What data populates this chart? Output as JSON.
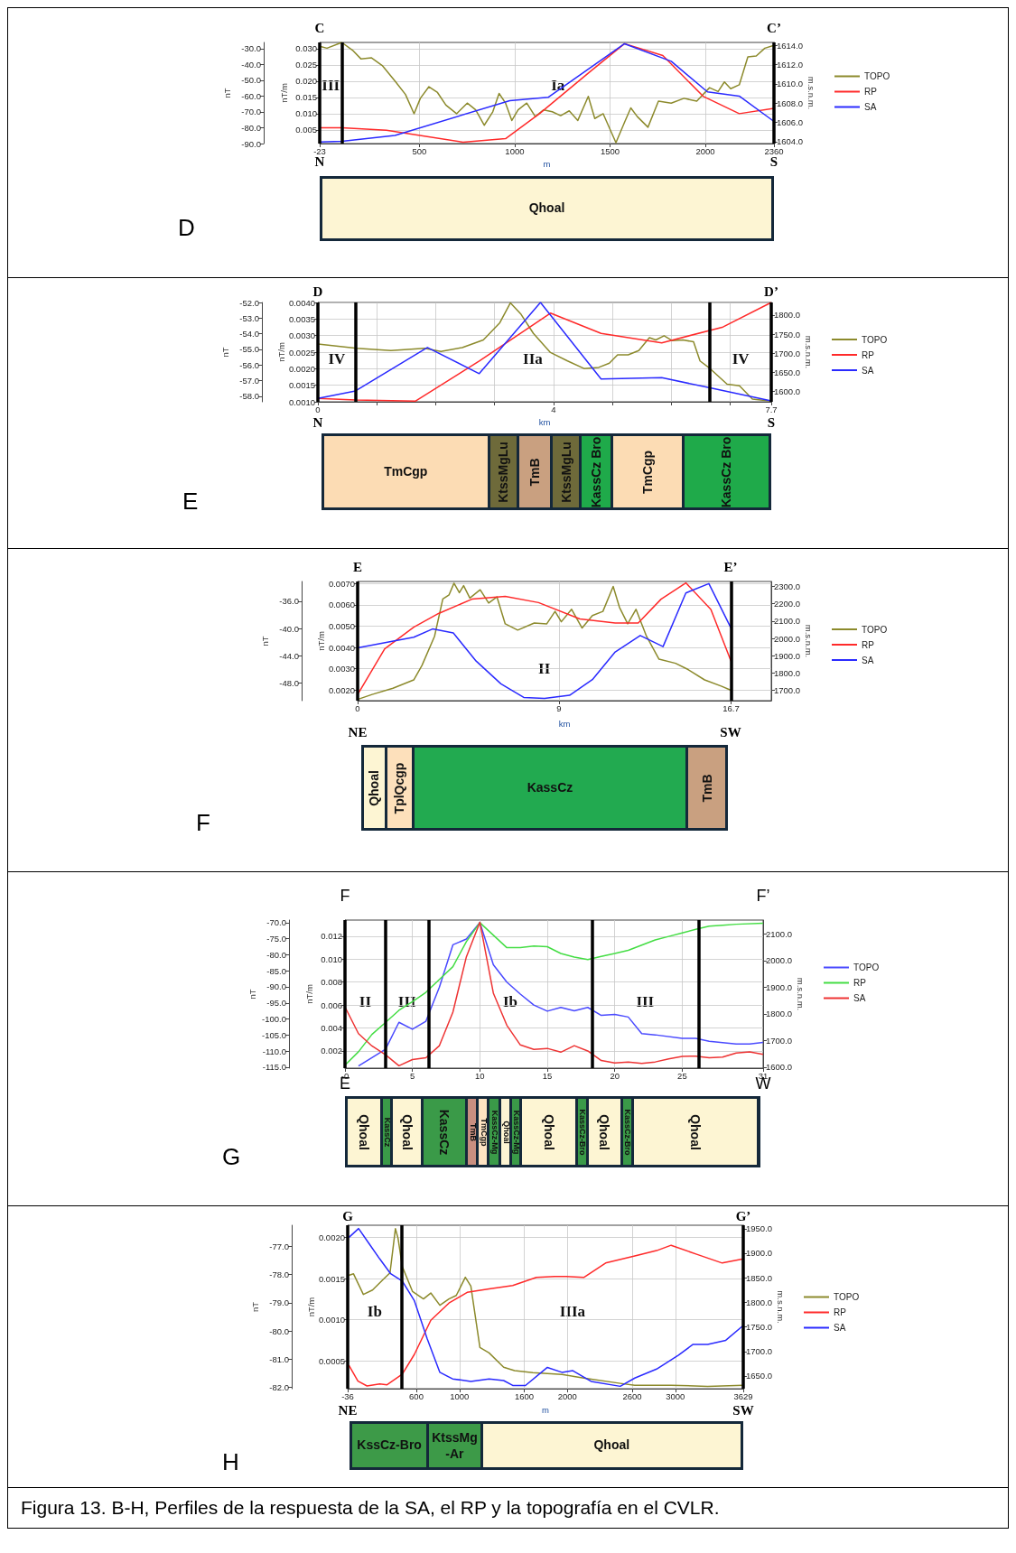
{
  "chart_data": [
    {
      "type": "line",
      "xlabel": "m",
      "ylabel": "nT/m",
      "y2label": "nT",
      "y3label": "m.s.n.m.",
      "xlim": [
        -23,
        2360
      ],
      "xticks": [
        -23,
        500,
        1000,
        1500,
        2000,
        2360
      ],
      "ylim": [
        0.0008,
        0.0319
      ],
      "yticks": [
        0.005,
        {
          "value": 0.01,
          "label": "0.010"
        },
        0.015,
        {
          "value": 0.02,
          "label": "0.020"
        },
        0.025,
        {
          "value": 0.03,
          "label": "0.030"
        }
      ],
      "y2lim": [
        -90,
        -26.1
      ],
      "y2ticks": [
        {
          "value": -90,
          "label": "-90.0"
        },
        {
          "value": -80,
          "label": "-80.0"
        },
        {
          "value": -70,
          "label": "-70.0"
        },
        {
          "value": -60,
          "label": "-60.0"
        },
        {
          "value": -50,
          "label": "-50.0"
        },
        {
          "value": -40,
          "label": "-40.0"
        },
        {
          "value": -30,
          "label": "-30.0"
        }
      ],
      "y3lim": [
        1603.8,
        1614.3
      ],
      "y3ticks": [
        {
          "value": 1604,
          "label": "1604.0"
        },
        {
          "value": 1606,
          "label": "1606.0"
        },
        {
          "value": 1608,
          "label": "1608.0"
        },
        {
          "value": 1610,
          "label": "1610.0"
        },
        {
          "value": 1612,
          "label": "1612.0"
        },
        {
          "value": 1614,
          "label": "1614.0"
        }
      ],
      "grid": true,
      "legend": "right",
      "annotations": [
        "C",
        "C’",
        "N",
        "S",
        "III",
        "Ia"
      ],
      "ref_lines": [
        {
          "axis": "x",
          "value": -23
        },
        {
          "axis": "x",
          "value": 93
        },
        {
          "axis": "x",
          "value": 2360
        }
      ],
      "series": [
        {
          "name": "TOPO",
          "color": "#8c8a2c",
          "axis": "y3",
          "x": [
            -23,
            15,
            93,
            149,
            193,
            249,
            305,
            372,
            427,
            472,
            505,
            550,
            595,
            639,
            695,
            751,
            795,
            840,
            885,
            918,
            952,
            985,
            1018,
            1063,
            1108,
            1152,
            1197,
            1241,
            1286,
            1331,
            1386,
            1420,
            1464,
            1531,
            1576,
            1609,
            1643,
            1699,
            1754,
            1821,
            1888,
            1955,
            2022,
            2067,
            2100,
            2133,
            2178,
            2223,
            2267,
            2312,
            2360
          ],
          "values": [
            1613.9,
            1613.7,
            1614.3,
            1613.5,
            1612.6,
            1612.7,
            1611.9,
            1610.3,
            1608.9,
            1606.9,
            1608.5,
            1609.7,
            1609.1,
            1607.8,
            1606.9,
            1608.0,
            1607.3,
            1605.7,
            1607.1,
            1609.0,
            1608.0,
            1606.2,
            1607.3,
            1608.0,
            1606.6,
            1607.3,
            1607.1,
            1606.7,
            1607.2,
            1606.2,
            1608.7,
            1606.4,
            1606.9,
            1603.9,
            1606.0,
            1607.5,
            1606.6,
            1605.5,
            1608.2,
            1608.0,
            1608.5,
            1608.2,
            1609.6,
            1609.2,
            1610.2,
            1609.5,
            1609.9,
            1612.8,
            1612.9,
            1613.7,
            1614.0
          ]
        },
        {
          "name": "RP",
          "color": "#ff2a2a",
          "axis": "y2",
          "x": [
            -23,
            93,
            327,
            729,
            952,
            1130,
            1398,
            1576,
            1777,
            1988,
            2178,
            2360
          ],
          "values": [
            -80.0,
            -80.0,
            -81.6,
            -89.1,
            -86.9,
            -71.1,
            -44.3,
            -26.9,
            -34.4,
            -60.1,
            -71.1,
            -67.8
          ]
        },
        {
          "name": "SA",
          "color": "#2a2aff",
          "axis": "y",
          "x": [
            -23,
            93,
            372,
            974,
            1175,
            1576,
            1821,
            2011,
            2178,
            2360
          ],
          "values": [
            0.0013,
            0.0015,
            0.0033,
            0.014,
            0.015,
            0.0315,
            0.0261,
            0.0167,
            0.0154,
            0.0076
          ]
        }
      ]
    },
    {
      "type": "other",
      "title": "D",
      "annotations": [
        "Qhoal"
      ]
    },
    {
      "type": "line",
      "xlabel": "km",
      "ylabel": "nT/m",
      "y2label": "nT",
      "y3label": "m.s.n.m.",
      "xlim": [
        0,
        7.7
      ],
      "xticks": [
        0,
        {
          "value": 1,
          "label": null
        },
        {
          "value": 2,
          "label": null
        },
        {
          "value": 3,
          "label": null
        },
        4,
        {
          "value": 5,
          "label": null
        },
        {
          "value": 6,
          "label": null
        },
        {
          "value": 7,
          "label": null
        },
        7.7
      ],
      "ylim": [
        0.001,
        0.004
      ],
      "yticks": [
        {
          "value": 0.001,
          "label": "0.0010"
        },
        {
          "value": 0.0015,
          "label": "0.0015"
        },
        {
          "value": 0.002,
          "label": "0.0020"
        },
        {
          "value": 0.0025,
          "label": "0.0025"
        },
        {
          "value": 0.003,
          "label": "0.0030"
        },
        {
          "value": 0.0035,
          "label": "0.0035"
        },
        {
          "value": 0.004,
          "label": "0.0040"
        }
      ],
      "y2lim": [
        -58.35,
        -52
      ],
      "y2ticks": [
        {
          "value": -58,
          "label": "-58.0"
        },
        {
          "value": -57,
          "label": "-57.0"
        },
        {
          "value": -56,
          "label": "-56.0"
        },
        {
          "value": -55,
          "label": "-55.0"
        },
        {
          "value": -54,
          "label": "-54.0"
        },
        {
          "value": -53,
          "label": "-53.0"
        },
        {
          "value": -52,
          "label": "-52.0"
        }
      ],
      "y3lim": [
        1573,
        1833
      ],
      "y3ticks": [
        {
          "value": 1600,
          "label": "1600.0"
        },
        {
          "value": 1650,
          "label": "1650.0"
        },
        {
          "value": 1700,
          "label": "1700.0"
        },
        {
          "value": 1750,
          "label": "1750.0"
        },
        {
          "value": 1800,
          "label": "1800.0"
        }
      ],
      "grid": true,
      "legend": "right",
      "annotations": [
        "D",
        "D’",
        "N",
        "S",
        "IV",
        "IIa",
        "IV"
      ],
      "ref_lines": [
        {
          "axis": "x",
          "value": 0
        },
        {
          "axis": "x",
          "value": 0.64
        },
        {
          "axis": "x",
          "value": 6.66
        },
        {
          "axis": "x",
          "value": 7.7
        }
      ],
      "series": [
        {
          "name": "TOPO",
          "color": "#8c8a2c",
          "axis": "y3",
          "x": [
            0,
            0.66,
            1.24,
            1.81,
            2.09,
            2.45,
            2.81,
            3.09,
            3.27,
            3.45,
            3.66,
            3.95,
            4.24,
            4.52,
            4.77,
            4.95,
            5.09,
            5.27,
            5.45,
            5.63,
            5.74,
            5.88,
            6.02,
            6.2,
            6.38,
            6.49,
            6.66,
            6.95,
            7.16,
            7.38,
            7.7
          ],
          "values": [
            1724,
            1713,
            1707,
            1713,
            1705,
            1715,
            1735,
            1780,
            1832,
            1802,
            1752,
            1702,
            1680,
            1660,
            1663,
            1674,
            1696,
            1696,
            1707,
            1741,
            1735,
            1746,
            1733,
            1735,
            1730,
            1680,
            1660,
            1619,
            1615,
            1580,
            1575
          ]
        },
        {
          "name": "RP",
          "color": "#ff2a2a",
          "axis": "y2",
          "x": [
            0,
            0.64,
            1.66,
            2.74,
            3.95,
            4.81,
            5.84,
            6.88,
            7.7
          ],
          "values": [
            -58.14,
            -58.24,
            -58.3,
            -55.75,
            -52.68,
            -53.98,
            -54.58,
            -53.57,
            -52.0
          ]
        },
        {
          "name": "SA",
          "color": "#2a2aff",
          "axis": "y",
          "x": [
            0,
            0.64,
            1.86,
            2.74,
            3.78,
            4.81,
            5.84,
            6.66,
            7.7
          ],
          "values": [
            0.0011,
            0.00133,
            0.00264,
            0.00185,
            0.004,
            0.00169,
            0.00173,
            0.00142,
            0.00103
          ]
        }
      ]
    },
    {
      "type": "other",
      "title": "E",
      "annotations": [
        "TmCgp",
        "KtssMgLu",
        "TmB",
        "KtssMgLu",
        "KassCz Bro",
        "TmCgp",
        "KassCz Bro"
      ]
    },
    {
      "type": "line",
      "xlabel": "km",
      "ylabel": "nT/m",
      "y2label": "nT",
      "y3label": "m.s.n.m.",
      "xlim": [
        0,
        18.5
      ],
      "xticks": [
        0,
        9,
        16.7
      ],
      "ylim": [
        0.0015,
        0.0071
      ],
      "yticks": [
        {
          "value": 0.002,
          "label": "0.0020"
        },
        {
          "value": 0.003,
          "label": "0.0030"
        },
        {
          "value": 0.004,
          "label": "0.0040"
        },
        {
          "value": 0.005,
          "label": "0.0050"
        },
        {
          "value": 0.006,
          "label": "0.0060"
        },
        {
          "value": 0.007,
          "label": "0.0070"
        }
      ],
      "y2lim": [
        -50.6,
        -33.1
      ],
      "y2ticks": [
        {
          "value": -48,
          "label": "-48.0"
        },
        {
          "value": -44,
          "label": "-44.0"
        },
        {
          "value": -40,
          "label": "-40.0"
        },
        {
          "value": -36,
          "label": "-36.0"
        }
      ],
      "y3lim": [
        1640,
        2329
      ],
      "y3ticks": [
        {
          "value": 1700,
          "label": "1700.0"
        },
        {
          "value": 1800,
          "label": "1800.0"
        },
        {
          "value": 1900,
          "label": "1900.0"
        },
        {
          "value": 2000,
          "label": "2000.0"
        },
        {
          "value": 2100,
          "label": "2100.0"
        },
        {
          "value": 2200,
          "label": "2200.0"
        },
        {
          "value": 2300,
          "label": "2300.0"
        }
      ],
      "grid": true,
      "legend": "right",
      "annotations": [
        "E",
        "E’",
        "NE",
        "SW",
        "II"
      ],
      "ref_lines": [
        {
          "axis": "x",
          "value": 0
        },
        {
          "axis": "x",
          "value": 16.7
        }
      ],
      "series": [
        {
          "name": "TOPO",
          "color": "#8c8a2c",
          "axis": "y3",
          "x": [
            0,
            0.65,
            1.58,
            2.51,
            2.88,
            3.44,
            3.81,
            4.09,
            4.31,
            4.55,
            4.74,
            5.02,
            5.48,
            5.86,
            6.23,
            6.6,
            7.16,
            7.9,
            8.46,
            8.83,
            9.11,
            9.57,
            10.04,
            10.5,
            10.97,
            11.43,
            11.71,
            12.08,
            12.45,
            12.92,
            13.48,
            14.22,
            14.78,
            15.52,
            16.26,
            16.7
          ],
          "values": [
            1647,
            1676,
            1712,
            1760,
            1844,
            2012,
            2228,
            2252,
            2319,
            2264,
            2305,
            2233,
            2281,
            2204,
            2240,
            2084,
            2048,
            2089,
            2084,
            2156,
            2096,
            2168,
            2060,
            2132,
            2156,
            2300,
            2180,
            2084,
            2168,
            2012,
            1880,
            1856,
            1820,
            1760,
            1724,
            1700
          ]
        },
        {
          "name": "RP",
          "color": "#ff2a2a",
          "axis": "y2",
          "x": [
            0,
            1.21,
            2.51,
            3.62,
            5.11,
            6.6,
            8.09,
            9.94,
            11.52,
            12.55,
            13.57,
            14.68,
            15.8,
            16.7
          ],
          "values": [
            -49.7,
            -43.0,
            -39.8,
            -37.8,
            -35.7,
            -35.3,
            -36.2,
            -38.6,
            -39.2,
            -39.2,
            -35.7,
            -33.3,
            -37.2,
            -44.8
          ]
        },
        {
          "name": "SA",
          "color": "#2a2aff",
          "axis": "y",
          "x": [
            0,
            2.51,
            3.35,
            4.28,
            5.3,
            6.41,
            7.43,
            8.36,
            9.48,
            10.5,
            11.52,
            12.64,
            13.66,
            14.68,
            15.71,
            16.7
          ],
          "values": [
            0.00398,
            0.00448,
            0.00487,
            0.00468,
            0.00336,
            0.00229,
            0.00165,
            0.00161,
            0.00175,
            0.00249,
            0.00379,
            0.00456,
            0.00404,
            0.00656,
            0.007,
            0.00491
          ]
        }
      ]
    },
    {
      "type": "other",
      "title": "F",
      "annotations": [
        "Qhoal",
        "TplQcgp",
        "KassCz",
        "TmB"
      ]
    },
    {
      "type": "line",
      "ylabel": "nT/m",
      "y2label": "nT",
      "y3label": "m.s.n.m.",
      "xlim": [
        0,
        31
      ],
      "xticks": [
        {
          "value": 0,
          "label": "-0"
        },
        5,
        10,
        15,
        20,
        25,
        31
      ],
      "ylim": [
        0.0005,
        0.0134
      ],
      "yticks": [
        0.002,
        0.004,
        0.006,
        0.008,
        {
          "value": 0.01,
          "label": "0.010"
        },
        0.012
      ],
      "y2lim": [
        -115.3,
        -69.2
      ],
      "y2ticks": [
        {
          "value": -115,
          "label": "-115.0"
        },
        {
          "value": -110,
          "label": "-110.0"
        },
        {
          "value": -105,
          "label": "-105.0"
        },
        {
          "value": -100,
          "label": "-100.0"
        },
        {
          "value": -95,
          "label": "-95.0"
        },
        {
          "value": -90,
          "label": "-90.0"
        },
        {
          "value": -85,
          "label": "-85.0"
        },
        {
          "value": -80,
          "label": "-80.0"
        },
        {
          "value": -75,
          "label": "-75.0"
        },
        {
          "value": -70,
          "label": "-70.0"
        }
      ],
      "y3lim": [
        1596,
        2152
      ],
      "y3ticks": [
        {
          "value": 1600,
          "label": "1600.0"
        },
        {
          "value": 1700,
          "label": "1700.0"
        },
        {
          "value": 1800,
          "label": "1800.0"
        },
        {
          "value": 1900,
          "label": "1900.0"
        },
        {
          "value": 2000,
          "label": "2000.0"
        },
        {
          "value": 2100,
          "label": "2100.0"
        }
      ],
      "grid": true,
      "legend": "right",
      "annotations": [
        "F",
        "F’",
        "E",
        "W",
        "II",
        "III",
        "Ib",
        "III"
      ],
      "ref_lines": [
        {
          "axis": "x",
          "value": 0
        },
        {
          "axis": "x",
          "value": 3
        },
        {
          "axis": "x",
          "value": 6.2
        },
        {
          "axis": "x",
          "value": 18.3
        },
        {
          "axis": "x",
          "value": 26.2
        }
      ],
      "series": [
        {
          "name": "TOPO",
          "color": "#4a4aff",
          "axis": "y3",
          "x": [
            1,
            3,
            4,
            5,
            6,
            7,
            8,
            9,
            10,
            11,
            12,
            13,
            14,
            15,
            16,
            17,
            18,
            19,
            20,
            21,
            22,
            23,
            25,
            26,
            27,
            29,
            30,
            31
          ],
          "values": [
            1604,
            1667,
            1768,
            1742,
            1772,
            1900,
            2059,
            2081,
            2143,
            1984,
            1919,
            1874,
            1833,
            1810,
            1824,
            1811,
            1824,
            1794,
            1798,
            1788,
            1726,
            1721,
            1708,
            1708,
            1697,
            1687,
            1687,
            1693
          ]
        },
        {
          "name": "RP",
          "color": "#44dd44",
          "axis": "y2",
          "x": [
            0,
            1,
            2,
            3,
            4,
            5,
            6,
            7,
            8,
            9,
            10,
            12,
            13,
            14,
            15,
            16,
            17,
            18,
            19,
            20,
            21,
            22,
            23,
            24,
            25,
            26,
            27,
            28,
            29,
            31
          ],
          "values": [
            -114.4,
            -110.2,
            -104.8,
            -101.1,
            -97.3,
            -94.6,
            -91.7,
            -87.7,
            -83.7,
            -75.9,
            -70.0,
            -77.8,
            -77.8,
            -77.3,
            -77.5,
            -79.6,
            -80.7,
            -81.5,
            -80.5,
            -79.6,
            -78.6,
            -77.0,
            -75.4,
            -74.3,
            -73.2,
            -72.1,
            -71.1,
            -70.8,
            -70.5,
            -70.2
          ]
        },
        {
          "name": "SA",
          "color": "#ee3333",
          "axis": "y",
          "x": [
            0,
            1,
            2,
            3,
            4,
            5,
            6,
            7,
            8,
            9,
            10,
            11,
            12,
            13,
            14,
            15,
            16,
            17,
            18,
            19,
            20,
            21,
            22,
            23,
            24,
            25,
            26,
            27,
            28,
            29,
            30,
            31
          ],
          "values": [
            0.00583,
            0.00351,
            0.00243,
            0.00167,
            0.00071,
            0.00125,
            0.0014,
            0.00246,
            0.00538,
            0.0102,
            0.01321,
            0.00703,
            0.00423,
            0.00252,
            0.00213,
            0.00222,
            0.00189,
            0.00246,
            0.002,
            0.00116,
            0.00095,
            0.00104,
            0.00092,
            0.00104,
            0.00131,
            0.00152,
            0.00155,
            0.0014,
            0.00146,
            0.00182,
            0.00191,
            0.0017
          ]
        }
      ]
    },
    {
      "type": "other",
      "title": "G",
      "annotations": [
        "Qhoal",
        "KassCz",
        "Qhoal",
        "KassCz",
        "TmB",
        "TmCgp",
        "KassCz-Mg",
        "Qhoal",
        "KassCz-Mg",
        "Qhoal",
        "KassCz-Bro",
        "Qhoal",
        "KassCz-Bro",
        "Qhoal"
      ]
    },
    {
      "type": "line",
      "xlabel": "m",
      "ylabel": "nT/m",
      "y2label": "nT",
      "y3label": "m.s.n.m.",
      "xlim": [
        -36,
        3629
      ],
      "xticks": [
        -36,
        600,
        1000,
        1600,
        2000,
        2600,
        3000,
        3629
      ],
      "ylim": [
        0.00016,
        0.00215
      ],
      "yticks": [
        0.0005,
        {
          "value": 0.001,
          "label": "0.0010"
        },
        0.0015,
        {
          "value": 0.002,
          "label": "0.0020"
        }
      ],
      "y2lim": [
        -82.05,
        -76.25
      ],
      "y2ticks": [
        {
          "value": -82,
          "label": "-82.0"
        },
        {
          "value": -81,
          "label": "-81.0"
        },
        {
          "value": -80,
          "label": "-80.0"
        },
        {
          "value": -79,
          "label": "-79.0"
        },
        {
          "value": -78,
          "label": "-78.0"
        },
        {
          "value": -77,
          "label": "-77.0"
        }
      ],
      "y3lim": [
        1624,
        1957
      ],
      "y3ticks": [
        {
          "value": 1650,
          "label": "1650.0"
        },
        {
          "value": 1700,
          "label": "1700.0"
        },
        {
          "value": 1750,
          "label": "1750.0"
        },
        {
          "value": 1800,
          "label": "1800.0"
        },
        {
          "value": 1850,
          "label": "1850.0"
        },
        {
          "value": 1900,
          "label": "1900.0"
        },
        {
          "value": 1950,
          "label": "1950.0"
        }
      ],
      "grid": true,
      "legend": "right",
      "annotations": [
        "G",
        "G’",
        "NE",
        "SW",
        "Ib",
        "IIIa"
      ],
      "ref_lines": [
        {
          "axis": "x",
          "value": -36
        },
        {
          "axis": "x",
          "value": 464
        },
        {
          "axis": "x",
          "value": 3629
        }
      ],
      "series": [
        {
          "name": "TOPO",
          "color": "#8c8a2c",
          "axis": "y3",
          "x": [
            -26,
            18,
            109,
            194,
            295,
            356,
            406,
            430,
            470,
            565,
            666,
            734,
            818,
            902,
            970,
            1054,
            1105,
            1189,
            1274,
            1409,
            1510,
            1679,
            1949,
            2151,
            2489,
            2624,
            2961,
            3299,
            3629
          ],
          "values": [
            1855,
            1858,
            1816,
            1825,
            1847,
            1860,
            1950,
            1931,
            1873,
            1822,
            1807,
            1819,
            1794,
            1807,
            1814,
            1851,
            1833,
            1708,
            1697,
            1668,
            1661,
            1657,
            1653,
            1646,
            1635,
            1631,
            1631,
            1629,
            1631
          ]
        },
        {
          "name": "RP",
          "color": "#ff2a2a",
          "axis": "y2",
          "x": [
            -26,
            59,
            143,
            261,
            329,
            470,
            582,
            734,
            902,
            1071,
            1274,
            1493,
            1712,
            1881,
            1989,
            2151,
            2354,
            2624,
            2826,
            2961,
            3197,
            3434,
            3629
          ],
          "values": [
            -81.21,
            -81.78,
            -81.95,
            -81.88,
            -81.91,
            -81.53,
            -80.83,
            -79.62,
            -79.01,
            -78.63,
            -78.51,
            -78.39,
            -78.1,
            -78.07,
            -78.07,
            -78.1,
            -77.59,
            -77.34,
            -77.15,
            -76.96,
            -77.28,
            -77.59,
            -77.44
          ]
        },
        {
          "name": "SA",
          "color": "#2a2aff",
          "axis": "y",
          "x": [
            -26,
            65,
            160,
            261,
            362,
            470,
            582,
            700,
            818,
            936,
            1105,
            1274,
            1409,
            1493,
            1611,
            1814,
            1949,
            2050,
            2219,
            2489,
            2624,
            2826,
            3029,
            3164,
            3299,
            3467,
            3629
          ],
          "values": [
            0.002,
            0.00211,
            0.00193,
            0.00174,
            0.00156,
            0.00147,
            0.00123,
            0.00077,
            0.00036,
            0.00028,
            0.00025,
            0.00028,
            0.00026,
            0.0002,
            0.0002,
            0.00042,
            0.00036,
            0.00038,
            0.00025,
            0.00019,
            0.00029,
            0.0004,
            0.00057,
            0.0007,
            0.0007,
            0.00075,
            0.00093
          ]
        }
      ]
    },
    {
      "type": "other",
      "title": "H",
      "annotations": [
        "KssCz-Bro",
        "KtssMg-Ar",
        "Qhoal"
      ]
    },
    {
      "type": "other",
      "annotations": [
        "Figura 13. B-H, Perfiles de la respuesta de la SA, el RP y la topografía en el CVLR."
      ]
    }
  ]
}
